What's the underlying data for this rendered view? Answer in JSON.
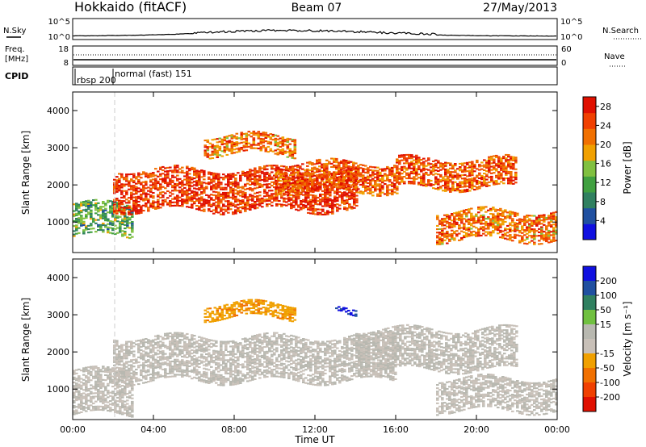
{
  "header": {
    "station": "Hokkaido (fitACF)",
    "beam": "Beam 07",
    "date": "27/May/2013"
  },
  "strips": {
    "nsky_label": "N.Sky",
    "nsearch_label": "N.Search",
    "freq_label_1": "Freq.",
    "freq_label_2": "[MHz]",
    "nave_label": "Nave",
    "cpid_label": "CPID",
    "noise_ticks_left": [
      "10^5",
      "10^0"
    ],
    "noise_ticks_right": [
      "10^5",
      "10^0"
    ],
    "freq_ticks_left": [
      "18",
      "8"
    ],
    "freq_ticks_right": [
      "60",
      "0"
    ],
    "cpid_modes": [
      "rbsp 200",
      "normal (fast) 151"
    ]
  },
  "colors": {
    "power_scale": [
      "#1010e0",
      "#2050a0",
      "#308060",
      "#40a040",
      "#80c040",
      "#f0a000",
      "#f07000",
      "#f04000",
      "#e01000"
    ],
    "velocity_scale": [
      "#1010e0",
      "#2050a0",
      "#308060",
      "#70c040",
      "#b8b8b0",
      "#c8c0b8",
      "#f0a000",
      "#f07000",
      "#f04000",
      "#e01000"
    ],
    "ground_scatter": "#b0b0b0"
  },
  "chart_data": [
    {
      "type": "heatmap",
      "name": "power",
      "xlabel": "",
      "ylabel": "Slant Range [km]",
      "xlim": [
        0,
        24
      ],
      "ylim": [
        180,
        4500
      ],
      "xticks": [
        "00:00",
        "04:00",
        "08:00",
        "12:00",
        "16:00",
        "20:00",
        "00:00"
      ],
      "yticks": [
        1000,
        2000,
        3000,
        4000
      ],
      "colorbar": {
        "label": "Power [dB]",
        "ticks": [
          4,
          8,
          12,
          16,
          20,
          24,
          28
        ],
        "range": [
          0,
          30
        ]
      },
      "echo_bands": [
        {
          "t_start": 0.0,
          "t_end": 3.0,
          "range_start": 600,
          "range_end": 1500,
          "level": 12
        },
        {
          "t_start": 2.0,
          "t_end": 14.0,
          "range_start": 1300,
          "range_end": 2400,
          "level": 26
        },
        {
          "t_start": 6.5,
          "t_end": 11.0,
          "range_start": 2800,
          "range_end": 3300,
          "level": 22
        },
        {
          "t_start": 10.0,
          "t_end": 16.0,
          "range_start": 1800,
          "range_end": 2600,
          "level": 24
        },
        {
          "t_start": 16.0,
          "t_end": 22.0,
          "range_start": 1900,
          "range_end": 2700,
          "level": 24
        },
        {
          "t_start": 18.0,
          "t_end": 24.0,
          "range_start": 500,
          "range_end": 1300,
          "level": 22
        }
      ]
    },
    {
      "type": "heatmap",
      "name": "velocity",
      "xlabel": "Time UT",
      "ylabel": "Slant Range [km]",
      "xlim": [
        0,
        24
      ],
      "ylim": [
        180,
        4500
      ],
      "xticks": [
        "00:00",
        "04:00",
        "08:00",
        "12:00",
        "16:00",
        "20:00",
        "00:00"
      ],
      "yticks": [
        1000,
        2000,
        3000,
        4000
      ],
      "colorbar": {
        "label": "Velocity [m s⁻¹]",
        "ticks": [
          200,
          100,
          50,
          15,
          -15,
          -50,
          -100,
          -200
        ],
        "range": [
          -250,
          250
        ]
      },
      "echo_bands": [
        {
          "t_start": 0.0,
          "t_end": 3.0,
          "range_start": 300,
          "range_end": 1500,
          "level": 0
        },
        {
          "t_start": 2.0,
          "t_end": 16.0,
          "range_start": 1200,
          "range_end": 2400,
          "level": 0
        },
        {
          "t_start": 6.5,
          "t_end": 11.0,
          "range_start": 2900,
          "range_end": 3300,
          "level": -40
        },
        {
          "t_start": 13.0,
          "t_end": 14.0,
          "range_start": 2950,
          "range_end": 3100,
          "level": 200
        },
        {
          "t_start": 14.0,
          "t_end": 22.0,
          "range_start": 1500,
          "range_end": 2600,
          "level": 0
        },
        {
          "t_start": 18.0,
          "t_end": 24.0,
          "range_start": 400,
          "range_end": 1300,
          "level": 0
        }
      ]
    }
  ]
}
